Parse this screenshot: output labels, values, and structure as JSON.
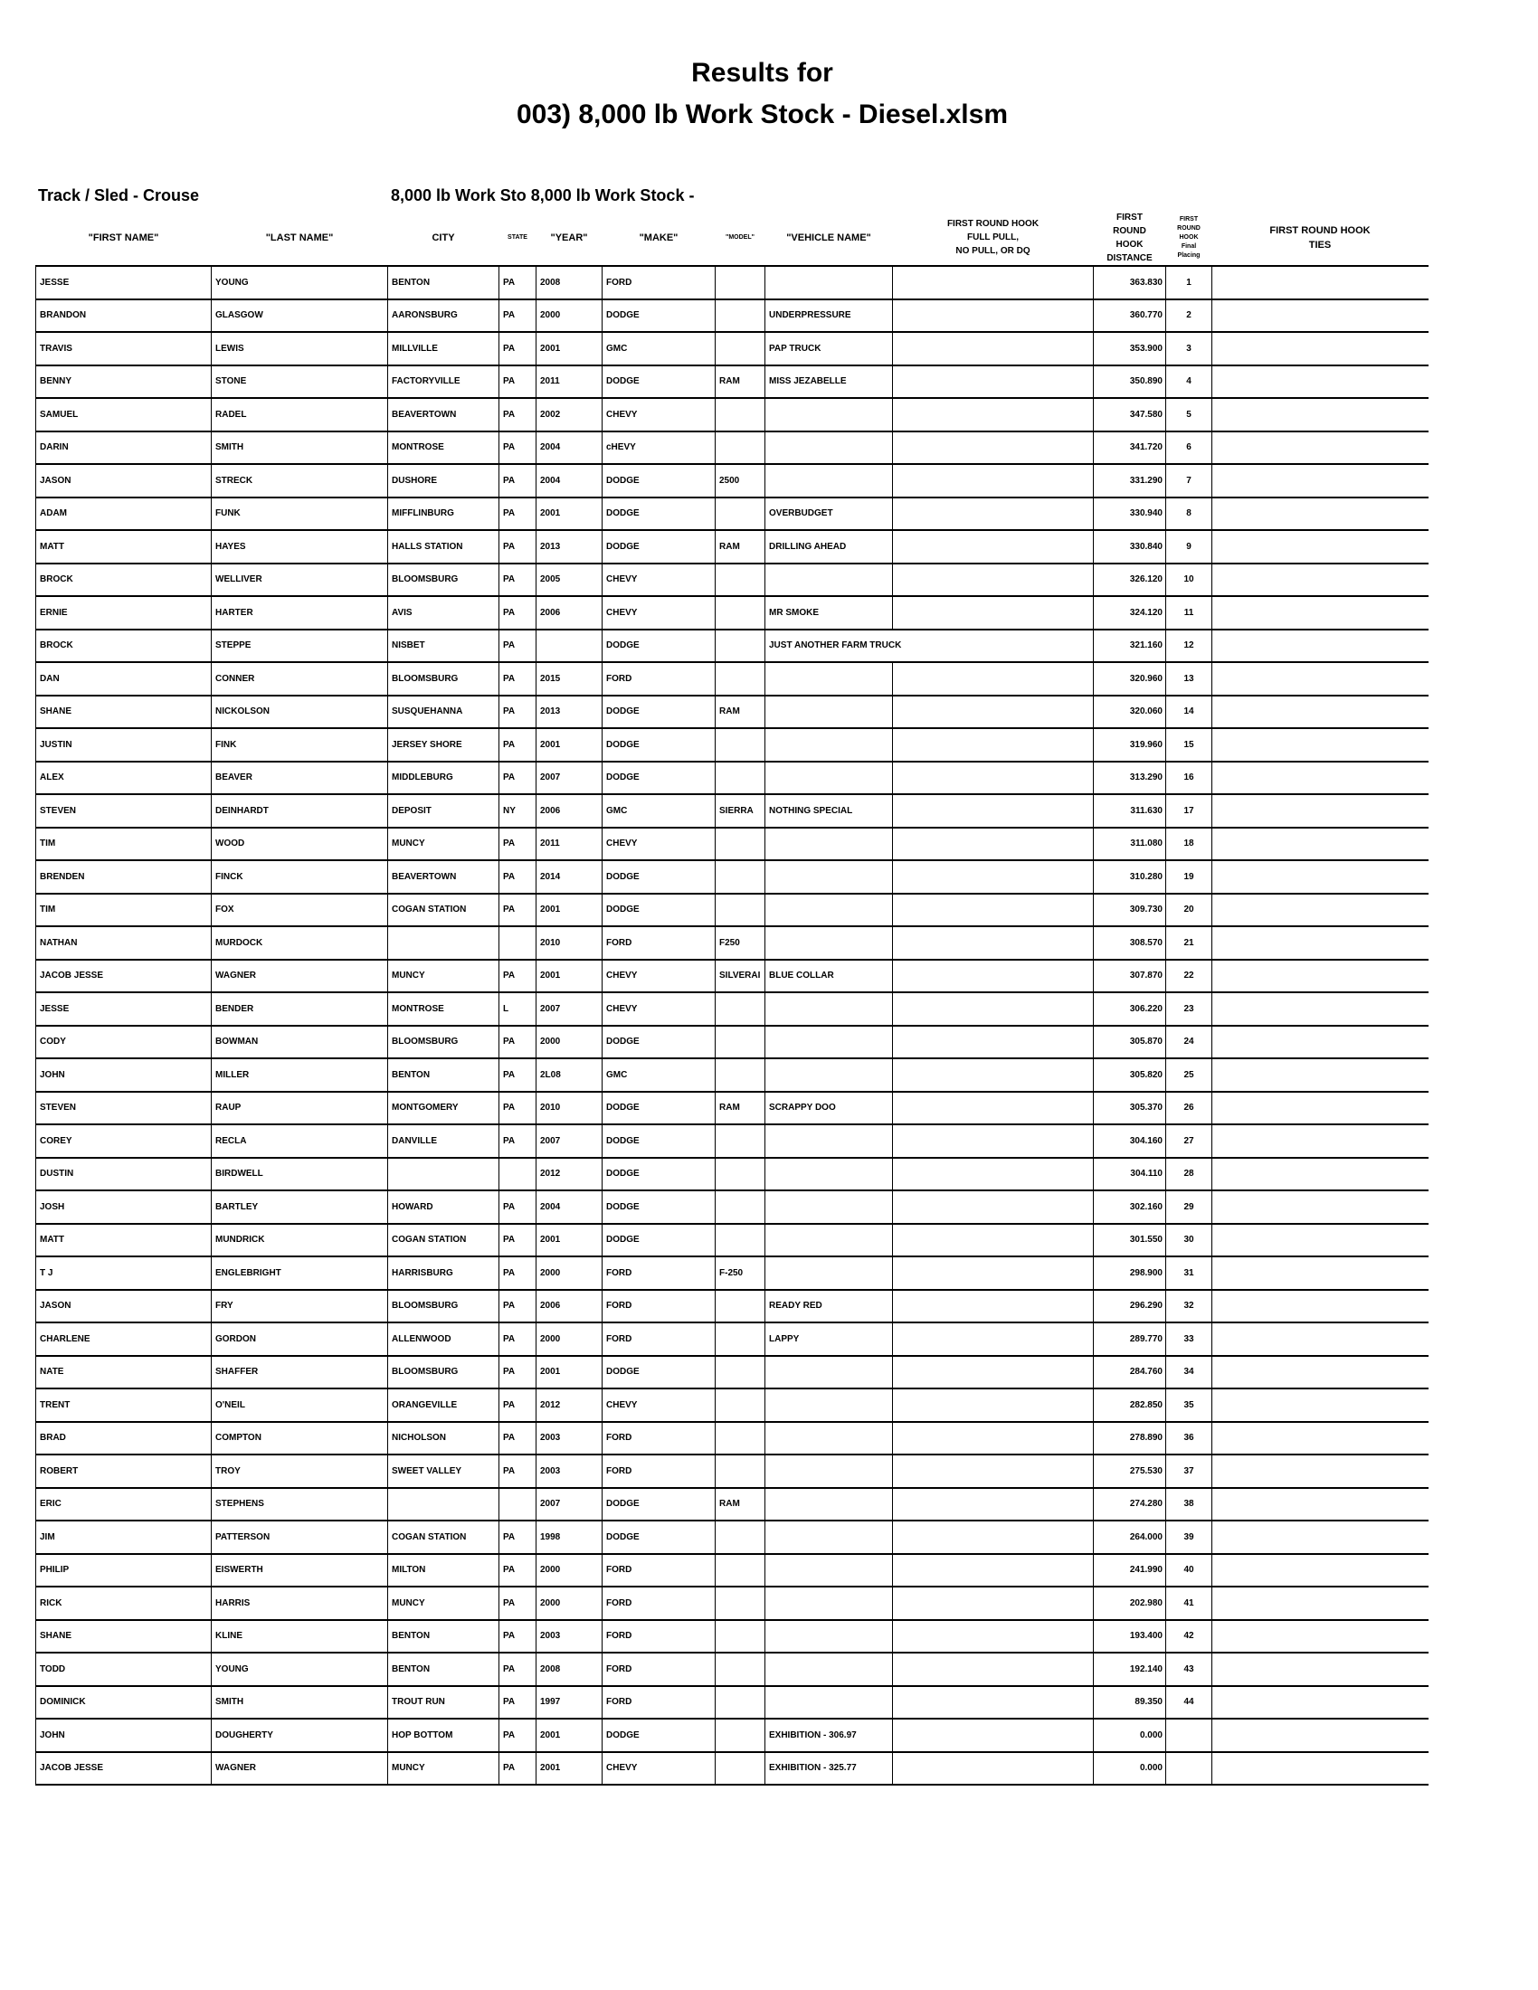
{
  "title": {
    "line1": "Results for",
    "line2": "003) 8,000 lb Work Stock - Diesel.xlsm"
  },
  "track_label": "Track / Sled - Crouse",
  "class_label": "8,000 lb Work Sto 8,000 lb Work Stock -",
  "columns": [
    "\"FIRST NAME\"",
    "\"LAST NAME\"",
    "CITY",
    "STATE",
    "\"YEAR\"",
    "\"MAKE\"",
    "\"MODEL\"",
    "\"VEHICLE NAME\"",
    "FIRST ROUND HOOK\nFULL PULL,\nNO PULL, OR DQ",
    "FIRST\nROUND\nHOOK\nDISTANCE",
    "FIRST\nROUND\nHOOK\nFinal\nPlacing",
    "FIRST ROUND HOOK\nTIES"
  ],
  "rows": [
    [
      "JESSE",
      "YOUNG",
      "BENTON",
      "PA",
      "2008",
      "FORD",
      "",
      "",
      "",
      "363.830",
      "1",
      ""
    ],
    [
      "BRANDON",
      "GLASGOW",
      "AARONSBURG",
      "PA",
      "2000",
      "DODGE",
      "",
      "UNDERPRESSURE",
      "",
      "360.770",
      "2",
      ""
    ],
    [
      "TRAVIS",
      "LEWIS",
      "MILLVILLE",
      "PA",
      "2001",
      "GMC",
      "",
      "PAP TRUCK",
      "",
      "353.900",
      "3",
      ""
    ],
    [
      "BENNY",
      "STONE",
      "FACTORYVILLE",
      "PA",
      "2011",
      "DODGE",
      "RAM",
      "MISS JEZABELLE",
      "",
      "350.890",
      "4",
      ""
    ],
    [
      "SAMUEL",
      "RADEL",
      "BEAVERTOWN",
      "PA",
      "2002",
      "CHEVY",
      "",
      "",
      "",
      "347.580",
      "5",
      ""
    ],
    [
      "DARIN",
      "SMITH",
      "MONTROSE",
      "PA",
      "2004",
      "cHEVY",
      "",
      "",
      "",
      "341.720",
      "6",
      ""
    ],
    [
      "JASON",
      "STRECK",
      "DUSHORE",
      "PA",
      "2004",
      "DODGE",
      "2500",
      "",
      "",
      "331.290",
      "7",
      ""
    ],
    [
      "ADAM",
      "FUNK",
      "MIFFLINBURG",
      "PA",
      "2001",
      "DODGE",
      "",
      "OVERBUDGET",
      "",
      "330.940",
      "8",
      ""
    ],
    [
      "MATT",
      "HAYES",
      "HALLS STATION",
      "PA",
      "2013",
      "DODGE",
      "RAM",
      "DRILLING AHEAD",
      "",
      "330.840",
      "9",
      ""
    ],
    [
      "BROCK",
      "WELLIVER",
      "BLOOMSBURG",
      "PA",
      "2005",
      "CHEVY",
      "",
      "",
      "",
      "326.120",
      "10",
      ""
    ],
    [
      "ERNIE",
      "HARTER",
      "AVIS",
      "PA",
      "2006",
      "CHEVY",
      "",
      "MR SMOKE",
      "",
      "324.120",
      "11",
      ""
    ],
    [
      "BROCK",
      "STEPPE",
      "NISBET",
      "PA",
      "",
      "DODGE",
      "",
      "JUST ANOTHER FARM TRUCK",
      "",
      "321.160",
      "12",
      ""
    ],
    [
      "DAN",
      "CONNER",
      "BLOOMSBURG",
      "PA",
      "2015",
      "FORD",
      "",
      "",
      "",
      "320.960",
      "13",
      ""
    ],
    [
      "SHANE",
      "NICKOLSON",
      "SUSQUEHANNA",
      "PA",
      "2013",
      "DODGE",
      "RAM",
      "",
      "",
      "320.060",
      "14",
      ""
    ],
    [
      "JUSTIN",
      "FINK",
      "JERSEY SHORE",
      "PA",
      "2001",
      "DODGE",
      "",
      "",
      "",
      "319.960",
      "15",
      ""
    ],
    [
      "ALEX",
      "BEAVER",
      "MIDDLEBURG",
      "PA",
      "2007",
      "DODGE",
      "",
      "",
      "",
      "313.290",
      "16",
      ""
    ],
    [
      "STEVEN",
      "DEINHARDT",
      "DEPOSIT",
      "NY",
      "2006",
      "GMC",
      "SIERRA",
      "NOTHING SPECIAL",
      "",
      "311.630",
      "17",
      ""
    ],
    [
      "TIM",
      "WOOD",
      "MUNCY",
      "PA",
      "2011",
      "CHEVY",
      "",
      "",
      "",
      "311.080",
      "18",
      ""
    ],
    [
      "BRENDEN",
      "FINCK",
      "BEAVERTOWN",
      "PA",
      "2014",
      "DODGE",
      "",
      "",
      "",
      "310.280",
      "19",
      ""
    ],
    [
      "TIM",
      "FOX",
      "COGAN STATION",
      "PA",
      "2001",
      "DODGE",
      "",
      "",
      "",
      "309.730",
      "20",
      ""
    ],
    [
      "NATHAN",
      "MURDOCK",
      "",
      "",
      "2010",
      "FORD",
      "F250",
      "",
      "",
      "308.570",
      "21",
      ""
    ],
    [
      "JACOB JESSE",
      "WAGNER",
      "MUNCY",
      "PA",
      "2001",
      "CHEVY",
      "SILVERAI",
      "BLUE COLLAR",
      "",
      "307.870",
      "22",
      ""
    ],
    [
      "JESSE",
      "BENDER",
      "MONTROSE",
      "L",
      "2007",
      "CHEVY",
      "",
      "",
      "",
      "306.220",
      "23",
      ""
    ],
    [
      "CODY",
      "BOWMAN",
      "BLOOMSBURG",
      "PA",
      "2000",
      "DODGE",
      "",
      "",
      "",
      "305.870",
      "24",
      ""
    ],
    [
      "JOHN",
      "MILLER",
      "BENTON",
      "PA",
      "2L08",
      "GMC",
      "",
      "",
      "",
      "305.820",
      "25",
      ""
    ],
    [
      "STEVEN",
      "RAUP",
      "MONTGOMERY",
      "PA",
      "2010",
      "DODGE",
      "RAM",
      "SCRAPPY DOO",
      "",
      "305.370",
      "26",
      ""
    ],
    [
      "COREY",
      "RECLA",
      "DANVILLE",
      "PA",
      "2007",
      "DODGE",
      "",
      "",
      "",
      "304.160",
      "27",
      ""
    ],
    [
      "DUSTIN",
      "BIRDWELL",
      "",
      "",
      "2012",
      "DODGE",
      "",
      "",
      "",
      "304.110",
      "28",
      ""
    ],
    [
      "JOSH",
      "BARTLEY",
      "HOWARD",
      "PA",
      "2004",
      "DODGE",
      "",
      "",
      "",
      "302.160",
      "29",
      ""
    ],
    [
      "MATT",
      "MUNDRICK",
      "COGAN STATION",
      "PA",
      "2001",
      "DODGE",
      "",
      "",
      "",
      "301.550",
      "30",
      ""
    ],
    [
      "T J",
      "ENGLEBRIGHT",
      "HARRISBURG",
      "PA",
      "2000",
      "FORD",
      "F-250",
      "",
      "",
      "298.900",
      "31",
      ""
    ],
    [
      "JASON",
      "FRY",
      "BLOOMSBURG",
      "PA",
      "2006",
      "FORD",
      "",
      "READY RED",
      "",
      "296.290",
      "32",
      ""
    ],
    [
      "CHARLENE",
      "GORDON",
      "ALLENWOOD",
      "PA",
      "2000",
      "FORD",
      "",
      "LAPPY",
      "",
      "289.770",
      "33",
      ""
    ],
    [
      "NATE",
      "SHAFFER",
      "BLOOMSBURG",
      "PA",
      "2001",
      "DODGE",
      "",
      "",
      "",
      "284.760",
      "34",
      ""
    ],
    [
      "TRENT",
      "O'NEIL",
      "ORANGEVILLE",
      "PA",
      "2012",
      "CHEVY",
      "",
      "",
      "",
      "282.850",
      "35",
      ""
    ],
    [
      "BRAD",
      "COMPTON",
      "NICHOLSON",
      "PA",
      "2003",
      "FORD",
      "",
      "",
      "",
      "278.890",
      "36",
      ""
    ],
    [
      "ROBERT",
      "TROY",
      "SWEET VALLEY",
      "PA",
      "2003",
      "FORD",
      "",
      "",
      "",
      "275.530",
      "37",
      ""
    ],
    [
      "ERIC",
      "STEPHENS",
      "",
      "",
      "2007",
      "DODGE",
      "RAM",
      "",
      "",
      "274.280",
      "38",
      ""
    ],
    [
      "JIM",
      "PATTERSON",
      "COGAN STATION",
      "PA",
      "1998",
      "DODGE",
      "",
      "",
      "",
      "264.000",
      "39",
      ""
    ],
    [
      "PHILIP",
      "EISWERTH",
      "MILTON",
      "PA",
      "2000",
      "FORD",
      "",
      "",
      "",
      "241.990",
      "40",
      ""
    ],
    [
      "RICK",
      "HARRIS",
      "MUNCY",
      "PA",
      "2000",
      "FORD",
      "",
      "",
      "",
      "202.980",
      "41",
      ""
    ],
    [
      "SHANE",
      "KLINE",
      "BENTON",
      "PA",
      "2003",
      "FORD",
      "",
      "",
      "",
      "193.400",
      "42",
      ""
    ],
    [
      "TODD",
      "YOUNG",
      "BENTON",
      "PA",
      "2008",
      "FORD",
      "",
      "",
      "",
      "192.140",
      "43",
      ""
    ],
    [
      "DOMINICK",
      "SMITH",
      "TROUT RUN",
      "PA",
      "1997",
      "FORD",
      "",
      "",
      "",
      "89.350",
      "44",
      ""
    ],
    [
      "JOHN",
      "DOUGHERTY",
      "HOP BOTTOM",
      "PA",
      "2001",
      "DODGE",
      "",
      "EXHIBITION - 306.97",
      "",
      "0.000",
      "",
      ""
    ],
    [
      "JACOB JESSE",
      "WAGNER",
      "MUNCY",
      "PA",
      "2001",
      "CHEVY",
      "",
      "EXHIBITION - 325.77",
      "",
      "0.000",
      "",
      ""
    ]
  ]
}
